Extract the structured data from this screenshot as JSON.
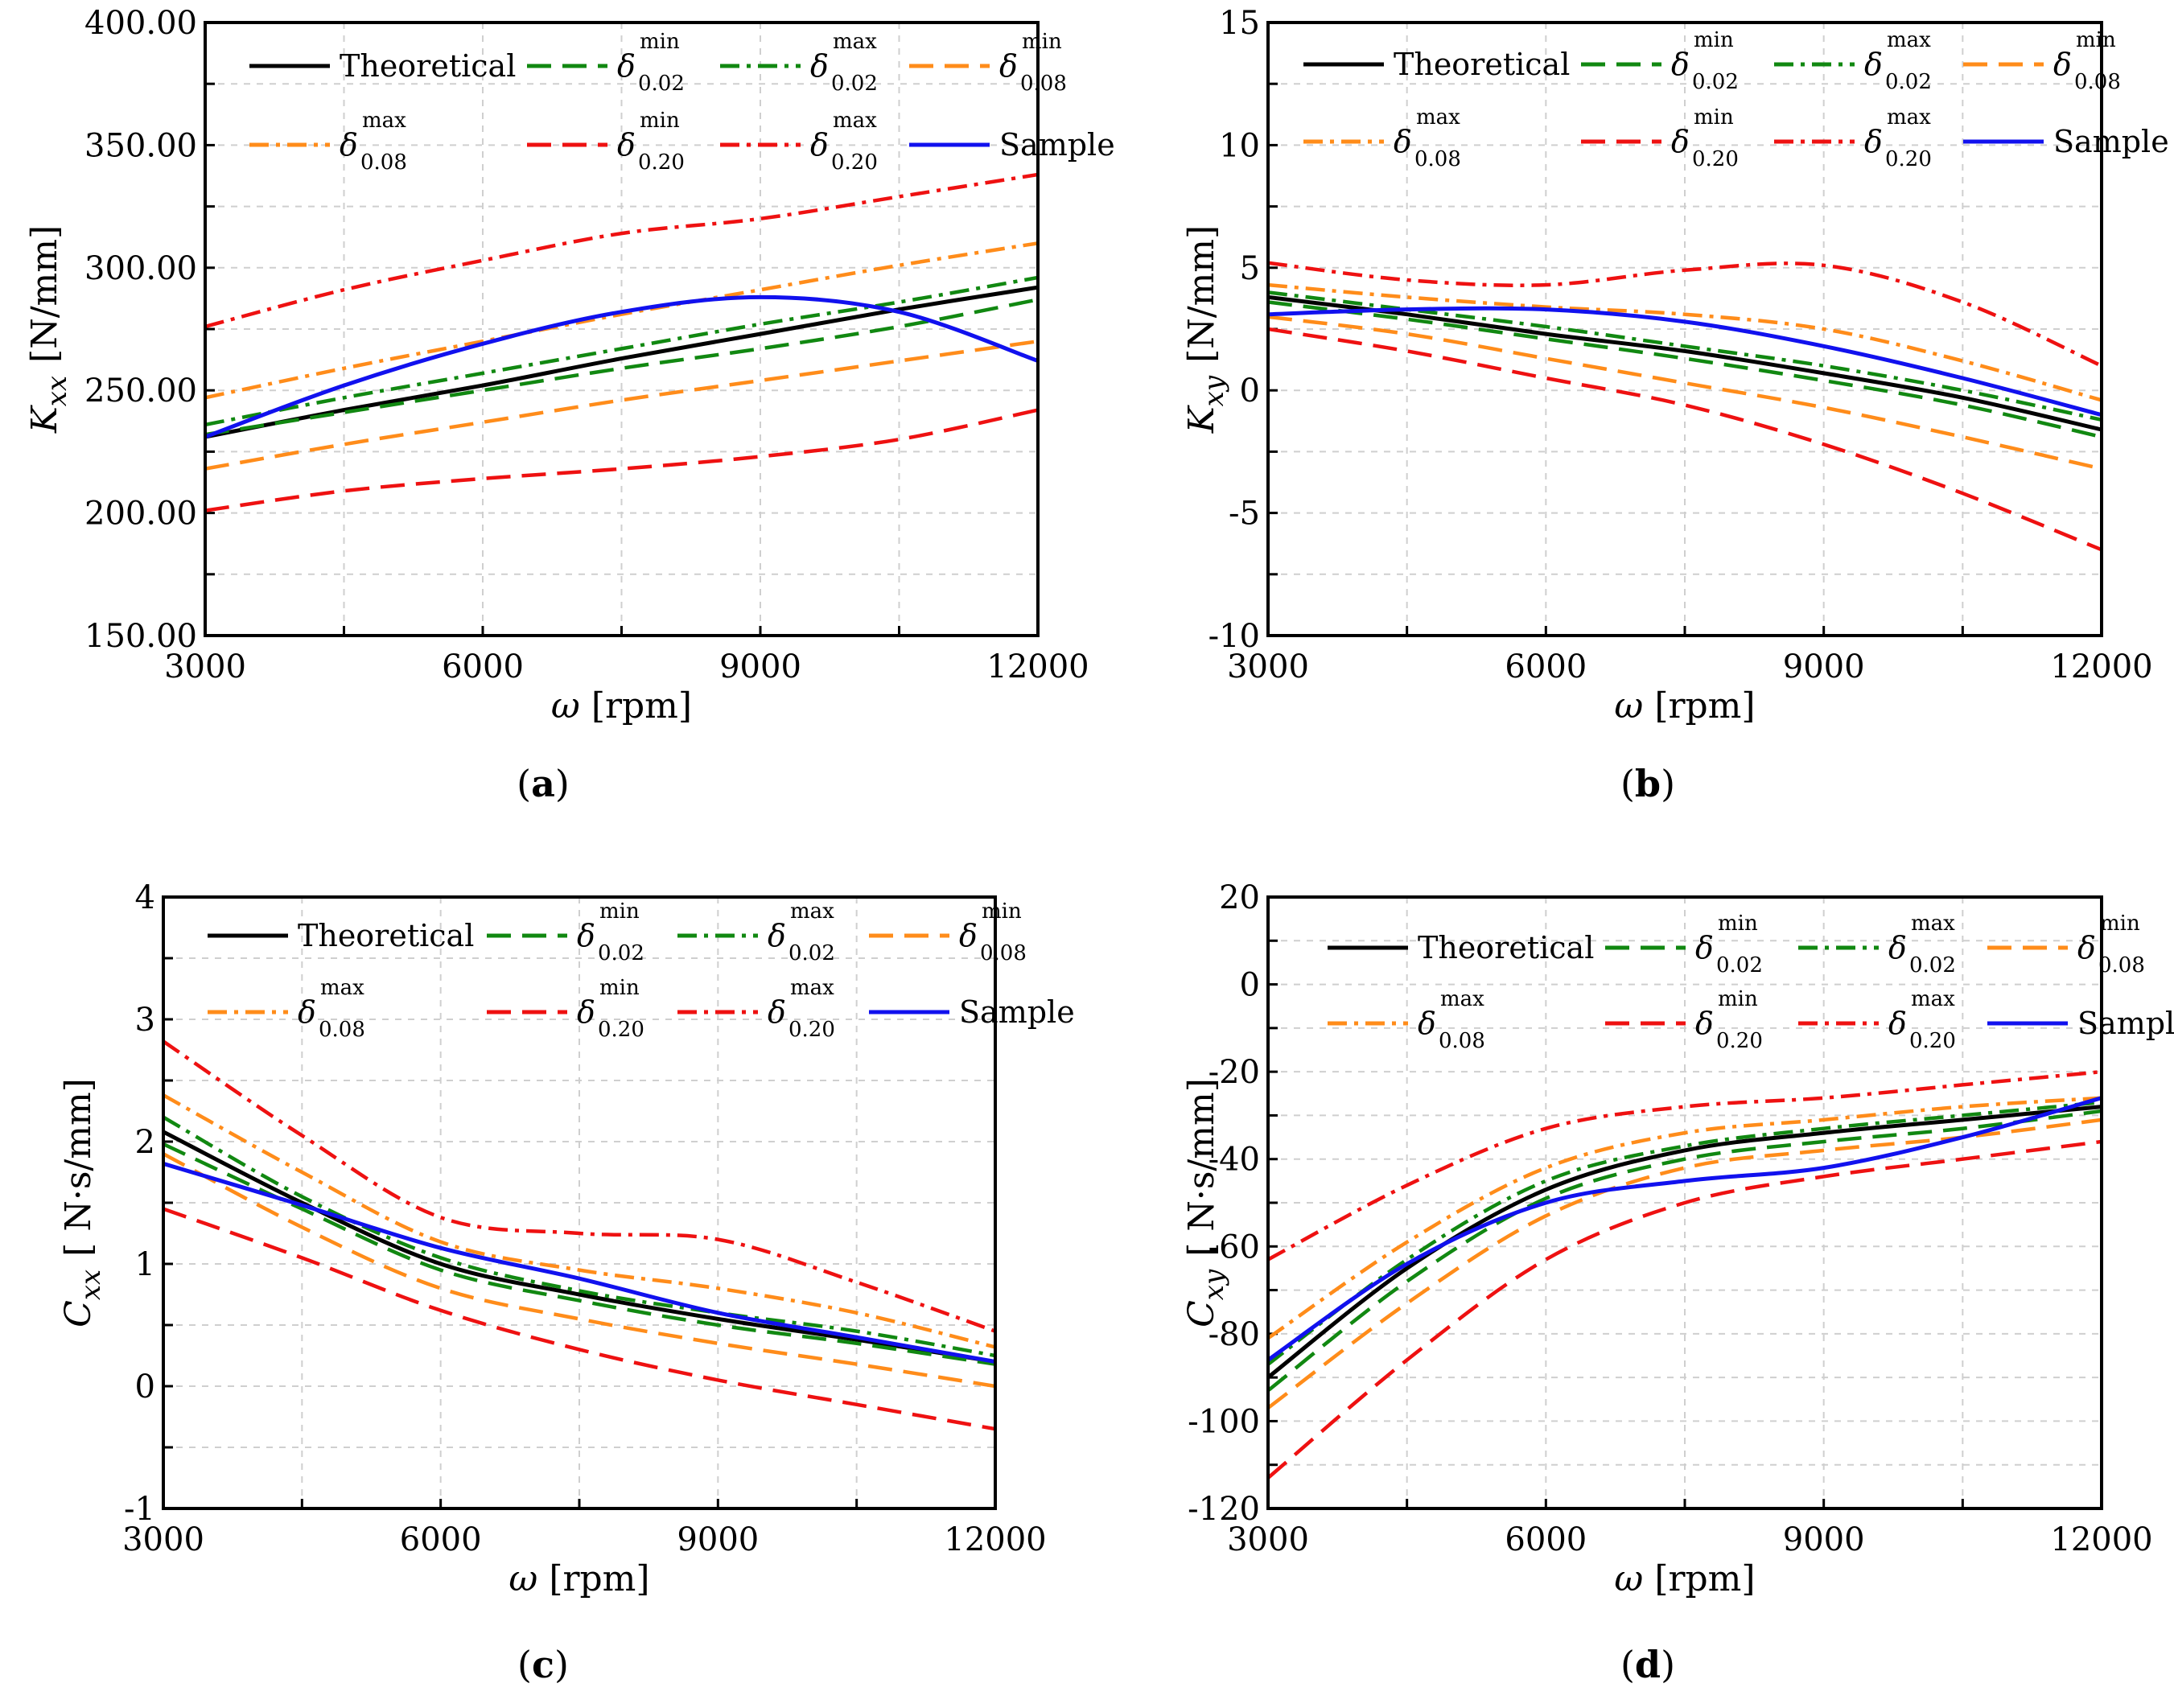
{
  "chart_data": [
    {
      "panel": "a",
      "type": "line",
      "caption": {
        "open": "(",
        "letter": "a",
        "close": ")"
      },
      "xlabel": {
        "symbol": "ω",
        "unit": "[rpm]"
      },
      "ylabel": {
        "symbol": "K",
        "sub": "xx",
        "unit": "[N/mm]"
      },
      "xlim": [
        3000,
        12000
      ],
      "ylim": [
        150,
        400
      ],
      "xticks": [
        3000,
        6000,
        9000,
        12000
      ],
      "xtick_labels": [
        "3000",
        "6000",
        "9000",
        "12000"
      ],
      "yticks": [
        150,
        200,
        250,
        300,
        350,
        400
      ],
      "ytick_labels": [
        "150.00",
        "200.00",
        "250.00",
        "300.00",
        "350.00",
        "400.00"
      ],
      "grid": true,
      "legend_position": "top",
      "x": [
        3000,
        4500,
        6000,
        7500,
        9000,
        10500,
        12000
      ],
      "series": [
        {
          "key": "theoretical",
          "values": [
            231,
            242,
            252,
            263,
            273,
            283,
            292
          ]
        },
        {
          "key": "d002min",
          "values": [
            232,
            241,
            250,
            259,
            267,
            276,
            287
          ]
        },
        {
          "key": "d002max",
          "values": [
            236,
            247,
            257,
            267,
            277,
            286,
            296
          ]
        },
        {
          "key": "d008min",
          "values": [
            218,
            228,
            237,
            246,
            254,
            262,
            270
          ]
        },
        {
          "key": "d008max",
          "values": [
            247,
            259,
            270,
            281,
            291,
            301,
            310
          ]
        },
        {
          "key": "d020min",
          "values": [
            201,
            209,
            214,
            218,
            223,
            230,
            242
          ]
        },
        {
          "key": "d020max",
          "values": [
            276,
            291,
            303,
            314,
            320,
            329,
            338
          ]
        },
        {
          "key": "sample",
          "values": [
            231,
            252,
            269,
            282,
            288,
            282,
            262
          ]
        }
      ]
    },
    {
      "panel": "b",
      "type": "line",
      "caption": {
        "open": "(",
        "letter": "b",
        "close": ")"
      },
      "xlabel": {
        "symbol": "ω",
        "unit": "[rpm]"
      },
      "ylabel": {
        "symbol": "K",
        "sub": "xy",
        "unit": "[N/mm]"
      },
      "xlim": [
        3000,
        12000
      ],
      "ylim": [
        -10,
        15
      ],
      "xticks": [
        3000,
        6000,
        9000,
        12000
      ],
      "xtick_labels": [
        "3000",
        "6000",
        "9000",
        "12000"
      ],
      "yticks": [
        -10,
        -5,
        0,
        5,
        10,
        15
      ],
      "ytick_labels": [
        "-10",
        "-5",
        "0",
        "5",
        "10",
        "15"
      ],
      "grid": true,
      "legend_position": "top",
      "x": [
        3000,
        4500,
        6000,
        7500,
        9000,
        10500,
        12000
      ],
      "series": [
        {
          "key": "theoretical",
          "values": [
            3.8,
            3.1,
            2.3,
            1.6,
            0.7,
            -0.3,
            -1.6
          ]
        },
        {
          "key": "d002min",
          "values": [
            3.6,
            2.9,
            2.1,
            1.3,
            0.4,
            -0.6,
            -1.9
          ]
        },
        {
          "key": "d002max",
          "values": [
            4.0,
            3.3,
            2.6,
            1.8,
            1.0,
            0.0,
            -1.2
          ]
        },
        {
          "key": "d008min",
          "values": [
            3.0,
            2.3,
            1.3,
            0.3,
            -0.7,
            -1.9,
            -3.2
          ]
        },
        {
          "key": "d008max",
          "values": [
            4.3,
            3.8,
            3.4,
            3.1,
            2.5,
            1.2,
            -0.4
          ]
        },
        {
          "key": "d020min",
          "values": [
            2.5,
            1.6,
            0.5,
            -0.6,
            -2.2,
            -4.2,
            -6.5
          ]
        },
        {
          "key": "d020max",
          "values": [
            5.2,
            4.5,
            4.3,
            4.9,
            5.1,
            3.6,
            1.0
          ]
        },
        {
          "key": "sample",
          "values": [
            3.1,
            3.3,
            3.3,
            2.8,
            1.8,
            0.5,
            -1.0
          ]
        }
      ]
    },
    {
      "panel": "c",
      "type": "line",
      "caption": {
        "open": "(",
        "letter": "c",
        "close": ")"
      },
      "xlabel": {
        "symbol": "ω",
        "unit": "[rpm]"
      },
      "ylabel": {
        "symbol": "C",
        "sub": "xx",
        "unit": "[ N·s/mm]"
      },
      "xlim": [
        3000,
        12000
      ],
      "ylim": [
        -1,
        4
      ],
      "xticks": [
        3000,
        6000,
        9000,
        12000
      ],
      "xtick_labels": [
        "3000",
        "6000",
        "9000",
        "12000"
      ],
      "yticks": [
        -1,
        0,
        1,
        2,
        3,
        4
      ],
      "ytick_labels": [
        "-1",
        "0",
        "1",
        "2",
        "3",
        "4"
      ],
      "grid": true,
      "legend_position": "top",
      "x": [
        3000,
        4500,
        6000,
        7500,
        9000,
        10500,
        12000
      ],
      "series": [
        {
          "key": "theoretical",
          "values": [
            2.08,
            1.5,
            1.0,
            0.75,
            0.55,
            0.38,
            0.2
          ]
        },
        {
          "key": "d002min",
          "values": [
            1.98,
            1.45,
            0.95,
            0.7,
            0.5,
            0.35,
            0.18
          ]
        },
        {
          "key": "d002max",
          "values": [
            2.2,
            1.55,
            1.05,
            0.78,
            0.6,
            0.45,
            0.25
          ]
        },
        {
          "key": "d008min",
          "values": [
            1.9,
            1.3,
            0.8,
            0.55,
            0.35,
            0.18,
            0.0
          ]
        },
        {
          "key": "d008max",
          "values": [
            2.38,
            1.75,
            1.18,
            0.95,
            0.8,
            0.6,
            0.32
          ]
        },
        {
          "key": "d020min",
          "values": [
            1.45,
            1.05,
            0.62,
            0.3,
            0.05,
            -0.15,
            -0.35
          ]
        },
        {
          "key": "d020max",
          "values": [
            2.82,
            2.05,
            1.38,
            1.25,
            1.2,
            0.85,
            0.45
          ]
        },
        {
          "key": "sample",
          "values": [
            1.82,
            1.48,
            1.13,
            0.88,
            0.6,
            0.4,
            0.2
          ]
        }
      ]
    },
    {
      "panel": "d",
      "type": "line",
      "caption": {
        "open": "(",
        "letter": "d",
        "close": ")"
      },
      "xlabel": {
        "symbol": "ω",
        "unit": "[rpm]"
      },
      "ylabel": {
        "symbol": "C",
        "sub": "xy",
        "unit": "[ N·s/mm]"
      },
      "xlim": [
        3000,
        12000
      ],
      "ylim": [
        -120,
        20
      ],
      "xticks": [
        3000,
        6000,
        9000,
        12000
      ],
      "xtick_labels": [
        "3000",
        "6000",
        "9000",
        "12000"
      ],
      "yticks": [
        -120,
        -100,
        -80,
        -60,
        -40,
        -20,
        0,
        20
      ],
      "ytick_labels": [
        "-120",
        "-100",
        "-80",
        "-60",
        "-40",
        "-20",
        "0",
        "20"
      ],
      "grid": true,
      "legend_position": "top",
      "x": [
        3000,
        4500,
        6000,
        7500,
        9000,
        10500,
        12000
      ],
      "series": [
        {
          "key": "theoretical",
          "values": [
            -90,
            -65,
            -47,
            -38,
            -34,
            -31,
            -28
          ]
        },
        {
          "key": "d002min",
          "values": [
            -93,
            -68,
            -49,
            -40,
            -36,
            -33,
            -29
          ]
        },
        {
          "key": "d002max",
          "values": [
            -87,
            -63,
            -45,
            -37,
            -33,
            -30,
            -27
          ]
        },
        {
          "key": "d008min",
          "values": [
            -97,
            -73,
            -53,
            -42,
            -38,
            -35,
            -31
          ]
        },
        {
          "key": "d008max",
          "values": [
            -81,
            -59,
            -42,
            -34,
            -31,
            -28,
            -26
          ]
        },
        {
          "key": "d020min",
          "values": [
            -113,
            -86,
            -63,
            -50,
            -44,
            -40,
            -36
          ]
        },
        {
          "key": "d020max",
          "values": [
            -63,
            -46,
            -33,
            -28,
            -26,
            -23,
            -20
          ]
        },
        {
          "key": "sample",
          "values": [
            -86,
            -64,
            -50,
            -45,
            -42,
            -35,
            -26
          ]
        }
      ]
    }
  ],
  "legend": [
    {
      "key": "theoretical",
      "type": "plain",
      "label": "Theoretical",
      "color": "#000000",
      "dash": ""
    },
    {
      "key": "d002min",
      "type": "delta",
      "base": "δ",
      "sub": "0.02",
      "sup": "min",
      "color": "#118811",
      "dash": "30,14"
    },
    {
      "key": "d002max",
      "type": "delta",
      "base": "δ",
      "sub": "0.02",
      "sup": "max",
      "color": "#118811",
      "dash": "24,9,5,9"
    },
    {
      "key": "d008min",
      "type": "delta",
      "base": "δ",
      "sub": "0.08",
      "sup": "min",
      "color": "#ff8c1a",
      "dash": "30,14"
    },
    {
      "key": "d008max",
      "type": "delta",
      "base": "δ",
      "sub": "0.08",
      "sup": "max",
      "color": "#ff8c1a",
      "dash": "24,9,5,9"
    },
    {
      "key": "d020min",
      "type": "delta",
      "base": "δ",
      "sub": "0.20",
      "sup": "min",
      "color": "#ee1111",
      "dash": "30,14"
    },
    {
      "key": "d020max",
      "type": "delta",
      "base": "δ",
      "sub": "0.20",
      "sup": "max",
      "color": "#ee1111",
      "dash": "24,9,5,9"
    },
    {
      "key": "sample",
      "type": "plain",
      "label": "Sample",
      "color": "#1111ee",
      "dash": ""
    }
  ]
}
